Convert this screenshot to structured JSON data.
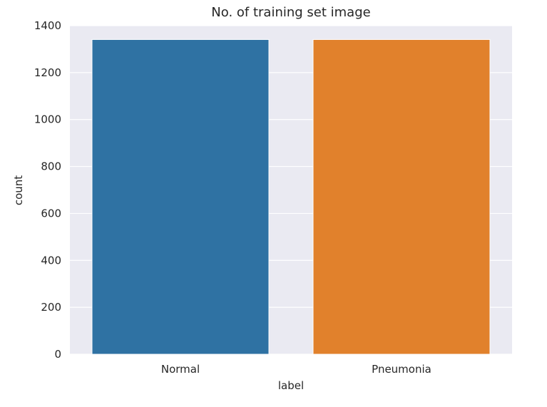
{
  "chart_data": {
    "type": "bar",
    "title": "No. of training set image",
    "xlabel": "label",
    "ylabel": "count",
    "categories": [
      "Normal",
      "Pneumonia"
    ],
    "values": [
      1341,
      1341
    ],
    "colors": [
      "#2f72a3",
      "#e1812c"
    ],
    "ylim": [
      0,
      1400
    ],
    "yticks": [
      0,
      200,
      400,
      600,
      800,
      1000,
      1200,
      1400
    ],
    "grid": true,
    "background": "#eaeaf2",
    "grid_color": "#ffffff"
  }
}
